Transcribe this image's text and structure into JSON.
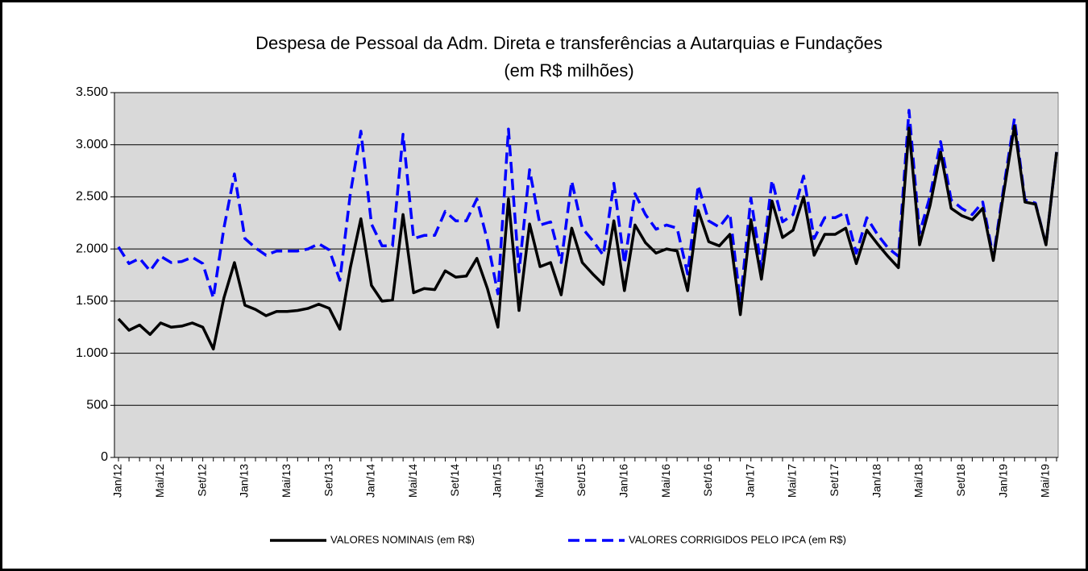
{
  "chart_data": {
    "type": "line",
    "title": "Despesa de Pessoal da Adm. Direta e transferências a Autarquias e Fundações",
    "subtitle": "(em R$ milhões)",
    "categories": [
      "Jan/12",
      null,
      null,
      null,
      "Mai/12",
      null,
      null,
      null,
      "Set/12",
      null,
      null,
      null,
      "Jan/13",
      null,
      null,
      null,
      "Mai/13",
      null,
      null,
      null,
      "Set/13",
      null,
      null,
      null,
      "Jan/14",
      null,
      null,
      null,
      "Mai/14",
      null,
      null,
      null,
      "Set/14",
      null,
      null,
      null,
      "Jan/15",
      null,
      null,
      null,
      "Mai/15",
      null,
      null,
      null,
      "Set/15",
      null,
      null,
      null,
      "Jan/16",
      null,
      null,
      null,
      "Mai/16",
      null,
      null,
      null,
      "Set/16",
      null,
      null,
      null,
      "Jan/17",
      null,
      null,
      null,
      "Mai/17",
      null,
      null,
      null,
      "Set/17",
      null,
      null,
      null,
      "Jan/18",
      null,
      null,
      null,
      "Mai/18",
      null,
      null,
      null,
      "Set/18",
      null,
      null,
      null,
      "Jan/19",
      null,
      null,
      null,
      "Mai/19",
      null
    ],
    "series": [
      {
        "name": "VALORES NOMINAIS (em R$)",
        "color": "#000000",
        "dash": false,
        "values": [
          1330,
          1220,
          1270,
          1180,
          1290,
          1250,
          1260,
          1290,
          1250,
          1040,
          1530,
          1870,
          1460,
          1420,
          1360,
          1400,
          1400,
          1410,
          1430,
          1470,
          1430,
          1230,
          1820,
          2290,
          1650,
          1500,
          1510,
          2330,
          1580,
          1620,
          1610,
          1790,
          1730,
          1740,
          1910,
          1620,
          1250,
          2480,
          1410,
          2240,
          1830,
          1870,
          1560,
          2200,
          1870,
          1760,
          1660,
          2270,
          1600,
          2230,
          2060,
          1960,
          2000,
          1980,
          1600,
          2370,
          2070,
          2030,
          2140,
          1370,
          2280,
          1710,
          2460,
          2110,
          2180,
          2500,
          1940,
          2140,
          2140,
          2200,
          1860,
          2180,
          2050,
          1930,
          1820,
          3160,
          2040,
          2420,
          2930,
          2390,
          2320,
          2280,
          2390,
          1890,
          2550,
          3180,
          2450,
          2430,
          2040,
          2930
        ]
      },
      {
        "name": "VALORES CORRIGIDOS PELO IPCA (em R$)",
        "color": "#0000ff",
        "dash": true,
        "values": [
          2020,
          1860,
          1910,
          1790,
          1930,
          1870,
          1880,
          1920,
          1860,
          1530,
          2200,
          2720,
          2100,
          2010,
          1940,
          1980,
          1980,
          1980,
          2000,
          2050,
          1990,
          1700,
          2530,
          3130,
          2240,
          2030,
          2030,
          3100,
          2100,
          2130,
          2130,
          2360,
          2270,
          2270,
          2480,
          2080,
          1570,
          3150,
          1780,
          2760,
          2230,
          2260,
          1870,
          2650,
          2200,
          2080,
          1940,
          2630,
          1860,
          2530,
          2330,
          2190,
          2230,
          2200,
          1760,
          2610,
          2270,
          2210,
          2340,
          1490,
          2490,
          1810,
          2660,
          2260,
          2330,
          2700,
          2100,
          2300,
          2300,
          2350,
          1960,
          2300,
          2140,
          2010,
          1930,
          3330,
          2150,
          2510,
          3030,
          2470,
          2390,
          2330,
          2450,
          1920,
          2600,
          3250,
          2470,
          2440,
          2040,
          2930
        ]
      }
    ],
    "ylim": [
      0,
      3500
    ],
    "yticks": [
      0,
      500,
      {
        "value": 1000,
        "label": "1.000"
      },
      {
        "value": 1500,
        "label": "1.500"
      },
      {
        "value": 2000,
        "label": "2.000"
      },
      {
        "value": 2500,
        "label": "2.500"
      },
      {
        "value": 3000,
        "label": "3.000"
      },
      {
        "value": 3500,
        "label": "3.500"
      }
    ],
    "grid": true,
    "legend": "bottom",
    "plot_background": "#d9d9d9"
  }
}
